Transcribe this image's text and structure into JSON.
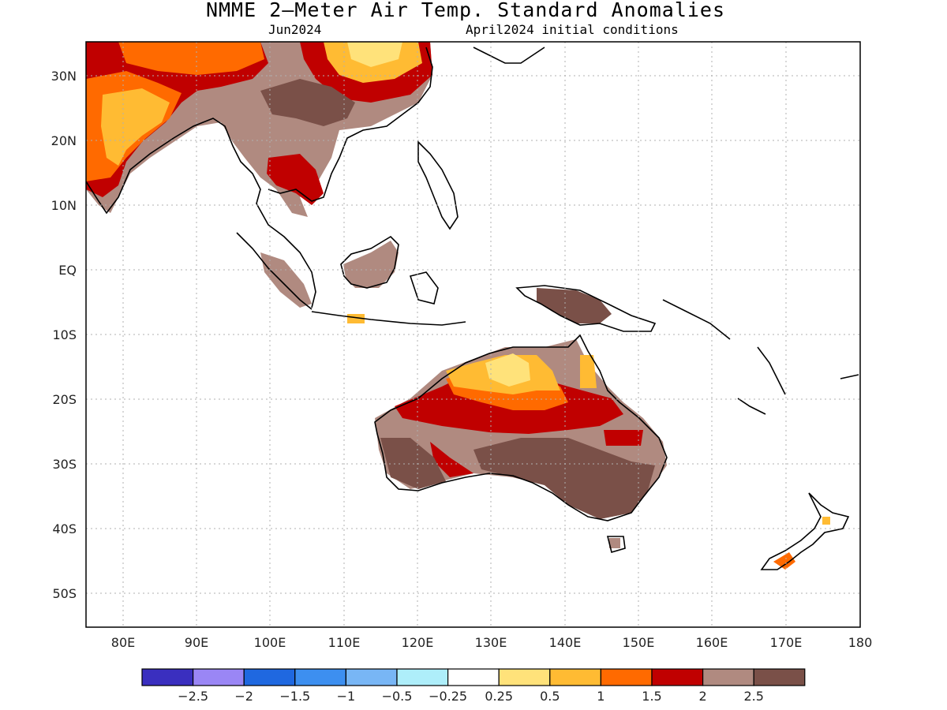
{
  "title": "NMME 2—Meter Air Temp. Standard Anomalies",
  "subtitle_left": "Jun2024",
  "subtitle_right": "April2024 initial conditions",
  "lat_labels": [
    "30N",
    "20N",
    "10N",
    "EQ",
    "10S",
    "20S",
    "30S",
    "40S",
    "50S"
  ],
  "lon_labels": [
    "80E",
    "90E",
    "100E",
    "110E",
    "120E",
    "130E",
    "140E",
    "150E",
    "160E",
    "170E",
    "180"
  ],
  "legend": {
    "colors": [
      "#3a2fbf",
      "#9a86f5",
      "#1f68e0",
      "#3d8ff0",
      "#78b6f5",
      "#aeeefa",
      "#ffffff",
      "#ffe27a",
      "#ffbb33",
      "#ff6a00",
      "#c00000",
      "#b08a80",
      "#7a5048"
    ],
    "labels": [
      "−2.5",
      "−2",
      "−1.5",
      "−1",
      "−0.5",
      "−0.25",
      "0.25",
      "0.5",
      "1",
      "1.5",
      "2",
      "2.5"
    ]
  }
}
